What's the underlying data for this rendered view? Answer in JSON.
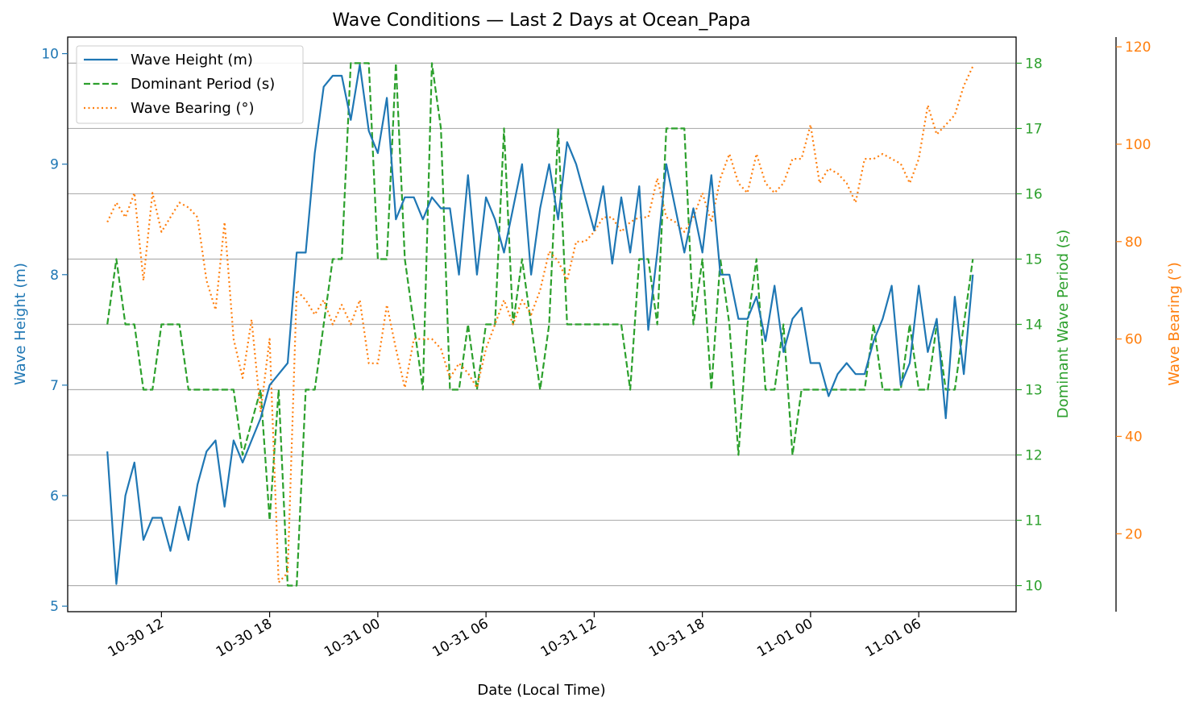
{
  "chart_data": {
    "type": "line",
    "title": "Wave Conditions — Last 2 Days at Ocean_Papa",
    "xlabel": "Date (Local Time)",
    "x_tick_labels": [
      "10-30 12",
      "10-30 18",
      "10-31 00",
      "10-31 06",
      "10-31 12",
      "10-31 18",
      "11-01 00",
      "11-01 06"
    ],
    "x_range_hours": [
      6.8,
      59.4
    ],
    "x_start_hours": 9.0,
    "x_step_hours": 0.5,
    "axes": {
      "height": {
        "label": "Wave Height (m)",
        "range": [
          4.95,
          10.15
        ],
        "ticks": [
          "5",
          "6",
          "7",
          "8",
          "9",
          "10"
        ],
        "color": "#1f77b4"
      },
      "period": {
        "label": "Dominant Wave Period (s)",
        "range": [
          9.6,
          18.4
        ],
        "ticks": [
          "10",
          "11",
          "12",
          "13",
          "14",
          "15",
          "16",
          "17",
          "18"
        ],
        "color": "#2ca02c"
      },
      "bearing": {
        "label": "Wave Bearing (°)",
        "range": [
          4,
          122
        ],
        "ticks": [
          "20",
          "40",
          "60",
          "80",
          "100",
          "120"
        ],
        "color": "#ff7f0e"
      }
    },
    "grid": "horizontal only",
    "legend_position": "top-left",
    "series": [
      {
        "name": "Wave Height (m)",
        "axis": "height",
        "style": "solid",
        "values": [
          6.4,
          5.2,
          6.0,
          6.3,
          5.6,
          5.8,
          5.8,
          5.5,
          5.9,
          5.6,
          6.1,
          6.4,
          6.5,
          5.9,
          6.5,
          6.3,
          6.5,
          6.7,
          7.0,
          7.1,
          7.2,
          8.2,
          8.2,
          9.1,
          9.7,
          9.8,
          9.8,
          9.4,
          9.9,
          9.3,
          9.1,
          9.6,
          8.5,
          8.7,
          8.7,
          8.5,
          8.7,
          8.6,
          8.6,
          8.0,
          8.9,
          8.0,
          8.7,
          8.5,
          8.2,
          8.6,
          9.0,
          8.0,
          8.6,
          9.0,
          8.5,
          9.2,
          9.0,
          8.7,
          8.4,
          8.8,
          8.1,
          8.7,
          8.2,
          8.8,
          7.5,
          8.2,
          9.0,
          8.6,
          8.2,
          8.6,
          8.2,
          8.9,
          8.0,
          8.0,
          7.6,
          7.6,
          7.8,
          7.4,
          7.9,
          7.3,
          7.6,
          7.7,
          7.2,
          7.2,
          6.9,
          7.1,
          7.2,
          7.1,
          7.1,
          7.4,
          7.6,
          7.9,
          7.0,
          7.2,
          7.9,
          7.3,
          7.6,
          6.7,
          7.8,
          7.1,
          8.0
        ]
      },
      {
        "name": "Dominant Period (s)",
        "axis": "period",
        "style": "dashed",
        "values": [
          14,
          15,
          14,
          14,
          13,
          13,
          14,
          14,
          14,
          13,
          13,
          13,
          13,
          13,
          13,
          12,
          12.5,
          13,
          11,
          13,
          10,
          10,
          13,
          13,
          14,
          15,
          15,
          18,
          18,
          18,
          15,
          15,
          18,
          15,
          14,
          13,
          18,
          17,
          13,
          13,
          14,
          13,
          14,
          14,
          17,
          14,
          15,
          14,
          13,
          14,
          17,
          14,
          14,
          14,
          14,
          14,
          14,
          14,
          13,
          15,
          15,
          14,
          17,
          17,
          17,
          14,
          15,
          13,
          15,
          14,
          12,
          14,
          15,
          13,
          13,
          14,
          12,
          13,
          13,
          13,
          13,
          13,
          13,
          13,
          13,
          14,
          13,
          13,
          13,
          14,
          13,
          13,
          14,
          13,
          13,
          14,
          15
        ]
      },
      {
        "name": "Wave Bearing (°)",
        "axis": "bearing",
        "style": "dotted",
        "values": [
          84,
          88,
          85,
          90,
          72,
          90,
          82,
          85,
          88,
          87,
          85,
          72,
          66,
          84,
          60,
          52,
          64,
          45,
          60,
          10,
          12,
          70,
          68,
          65,
          68,
          63,
          67,
          63,
          68,
          55,
          55,
          67,
          58,
          50,
          60,
          60,
          60,
          58,
          52,
          55,
          53,
          50,
          58,
          63,
          68,
          63,
          68,
          65,
          70,
          78,
          76,
          72,
          80,
          80,
          82,
          85,
          85,
          82,
          84,
          85,
          85,
          93,
          85,
          84,
          82,
          85,
          90,
          84,
          93,
          98,
          92,
          90,
          98,
          92,
          90,
          92,
          97,
          97,
          104,
          92,
          95,
          94,
          92,
          88,
          97,
          97,
          98,
          97,
          96,
          92,
          97,
          108,
          102,
          104,
          106,
          112,
          116
        ]
      }
    ]
  }
}
